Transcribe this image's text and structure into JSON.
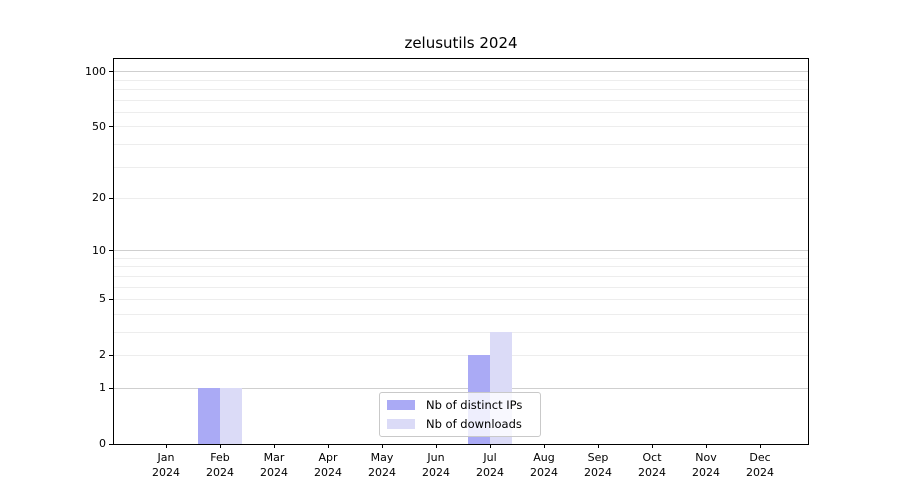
{
  "chart_data": {
    "type": "bar",
    "title": "zelusutils 2024",
    "categories": [
      "Jan 2024",
      "Feb 2024",
      "Mar 2024",
      "Apr 2024",
      "May 2024",
      "Jun 2024",
      "Jul 2024",
      "Aug 2024",
      "Sep 2024",
      "Oct 2024",
      "Nov 2024",
      "Dec 2024"
    ],
    "series": [
      {
        "name": "Nb of distinct IPs",
        "color": "#aaaaf5",
        "values": [
          0,
          1,
          0,
          0,
          0,
          0,
          2,
          0,
          0,
          0,
          0,
          0
        ]
      },
      {
        "name": "Nb of downloads",
        "color": "#dbdbf7",
        "values": [
          0,
          1,
          0,
          0,
          0,
          0,
          3,
          0,
          0,
          0,
          0,
          0
        ]
      }
    ],
    "xlabel": "",
    "ylabel": "",
    "yscale": "log1p",
    "ylim": [
      0,
      116
    ],
    "yticks": [
      0,
      1,
      2,
      5,
      10,
      20,
      50,
      100
    ],
    "decade_gridlines": [
      1,
      10,
      100
    ],
    "minor_gridlines": [
      2,
      3,
      4,
      5,
      6,
      7,
      8,
      9,
      20,
      30,
      40,
      50,
      60,
      70,
      80,
      90
    ],
    "grid": true,
    "legend_position": "lower-center-inside",
    "colors": {
      "grid_major": "#cfcfcf",
      "grid_minor": "#ededed",
      "axis": "#000000",
      "text": "#000000",
      "background": "#ffffff"
    }
  }
}
